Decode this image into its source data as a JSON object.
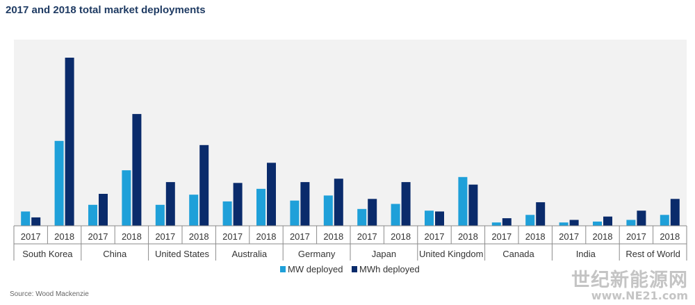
{
  "source": "Source: Wood Mackenzie",
  "watermark": {
    "name": "世纪新能源网",
    "url": "www.NE21.com"
  },
  "chart_data": {
    "type": "bar",
    "title": "2017 and 2018 total market deployments",
    "xlabel": "",
    "ylabel": "",
    "grid": false,
    "legend_position": "bottom-center",
    "ylim": [
      0,
      100
    ],
    "groups": [
      "South Korea",
      "China",
      "United States",
      "Australia",
      "Germany",
      "Japan",
      "United Kingdom",
      "Canada",
      "India",
      "Rest of World"
    ],
    "years": [
      "2017",
      "2018"
    ],
    "categories": [
      "South Korea 2017",
      "South Korea 2018",
      "China 2017",
      "China 2018",
      "United States 2017",
      "United States 2018",
      "Australia 2017",
      "Australia 2018",
      "Germany 2017",
      "Germany 2018",
      "Japan 2017",
      "Japan 2018",
      "United Kingdom 2017",
      "United Kingdom 2018",
      "Canada 2017",
      "Canada 2018",
      "India 2017",
      "India 2018",
      "Rest of World 2017",
      "Rest of World 2018"
    ],
    "series": [
      {
        "name": "MW deployed",
        "color": "#1fa0d9",
        "values": [
          8.5,
          50.5,
          12.5,
          33,
          12.5,
          18.5,
          14.5,
          22,
          15,
          18,
          10,
          13,
          9,
          29,
          2,
          6.5,
          2,
          2.5,
          3.5,
          6.5
        ]
      },
      {
        "name": "MWh deployed",
        "color": "#0a2b6b",
        "values": [
          5,
          100,
          19,
          66.5,
          26,
          48,
          25.5,
          37.5,
          26,
          28,
          16,
          26,
          8.5,
          24.5,
          4.5,
          14,
          3.5,
          5.5,
          9,
          16
        ]
      }
    ]
  }
}
